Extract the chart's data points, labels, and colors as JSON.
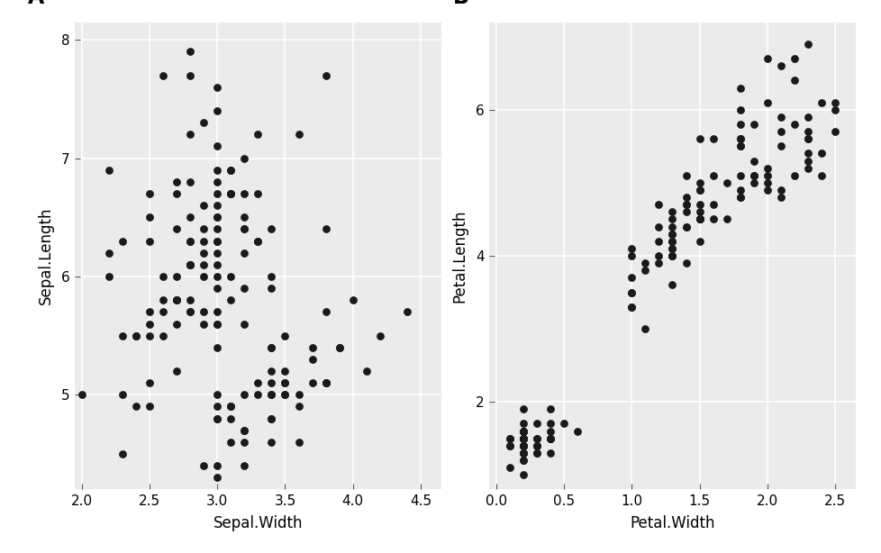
{
  "sepal_width": [
    3.5,
    3.0,
    3.2,
    3.1,
    3.6,
    3.9,
    3.4,
    3.4,
    2.9,
    3.1,
    3.7,
    3.4,
    3.0,
    3.0,
    4.0,
    4.4,
    3.9,
    3.5,
    3.8,
    3.8,
    3.4,
    3.7,
    3.6,
    3.3,
    3.4,
    3.0,
    3.4,
    3.5,
    3.4,
    3.2,
    3.1,
    3.4,
    4.1,
    4.2,
    3.1,
    3.2,
    3.5,
    3.6,
    3.0,
    3.4,
    3.5,
    2.3,
    3.2,
    3.5,
    3.8,
    3.0,
    3.8,
    3.2,
    3.7,
    3.3,
    3.2,
    3.2,
    3.1,
    2.3,
    2.8,
    2.8,
    3.3,
    2.4,
    2.9,
    2.7,
    2.0,
    3.0,
    2.2,
    2.9,
    2.9,
    3.1,
    3.0,
    2.7,
    2.2,
    2.5,
    3.2,
    2.8,
    2.5,
    2.8,
    2.9,
    3.0,
    2.8,
    3.0,
    2.9,
    2.6,
    2.4,
    2.4,
    2.7,
    2.7,
    3.0,
    3.4,
    3.1,
    2.3,
    3.0,
    2.5,
    2.6,
    3.0,
    2.6,
    2.3,
    2.7,
    3.0,
    2.9,
    2.9,
    2.5,
    2.8,
    3.3,
    2.7,
    3.0,
    2.9,
    3.0,
    3.0,
    2.5,
    2.9,
    2.5,
    3.6,
    3.2,
    2.7,
    3.0,
    2.5,
    2.8,
    3.2,
    3.0,
    3.8,
    2.6,
    2.2,
    3.2,
    2.8,
    2.8,
    2.7,
    3.3,
    3.2,
    2.8,
    3.0,
    2.8,
    3.0,
    2.8,
    3.8,
    2.8,
    2.8,
    2.6,
    3.0,
    3.4,
    3.1,
    3.0,
    3.1,
    3.1,
    3.1,
    2.7,
    3.2,
    3.3,
    3.0,
    2.5,
    3.0,
    3.4,
    3.0
  ],
  "sepal_length": [
    5.1,
    4.9,
    4.7,
    4.6,
    5.0,
    5.4,
    4.6,
    5.0,
    4.4,
    4.9,
    5.4,
    4.8,
    4.8,
    4.3,
    5.8,
    5.7,
    5.4,
    5.1,
    5.7,
    5.1,
    5.4,
    5.1,
    4.6,
    5.1,
    4.8,
    5.0,
    5.0,
    5.2,
    5.2,
    4.7,
    4.8,
    5.4,
    5.2,
    5.5,
    4.9,
    5.0,
    5.5,
    4.9,
    4.4,
    5.1,
    5.0,
    4.5,
    4.4,
    5.0,
    5.1,
    4.8,
    5.1,
    4.6,
    5.3,
    5.0,
    7.0,
    6.4,
    6.9,
    5.5,
    6.5,
    5.7,
    6.3,
    4.9,
    6.6,
    5.2,
    5.0,
    5.9,
    6.0,
    6.1,
    5.6,
    6.7,
    5.6,
    5.8,
    6.2,
    5.6,
    5.9,
    6.1,
    6.3,
    6.1,
    6.4,
    6.6,
    6.8,
    6.7,
    6.0,
    5.7,
    5.5,
    5.5,
    5.8,
    6.0,
    5.4,
    6.0,
    6.7,
    6.3,
    5.6,
    5.5,
    5.5,
    6.1,
    5.8,
    5.0,
    5.6,
    5.7,
    5.7,
    6.2,
    5.1,
    5.7,
    6.3,
    5.8,
    7.1,
    6.3,
    6.5,
    7.6,
    4.9,
    7.3,
    6.7,
    7.2,
    6.5,
    6.4,
    6.8,
    5.7,
    5.8,
    6.4,
    6.5,
    7.7,
    6.0,
    6.9,
    5.6,
    7.7,
    6.3,
    6.7,
    7.2,
    6.2,
    6.1,
    6.4,
    7.2,
    7.4,
    7.9,
    6.4,
    6.3,
    6.1,
    7.7,
    6.3,
    6.4,
    6.0,
    6.9,
    6.7,
    6.9,
    5.8,
    6.8,
    6.7,
    6.7,
    6.3,
    6.5,
    6.2,
    5.9,
    6.0
  ],
  "petal_width": [
    0.2,
    0.2,
    0.2,
    0.2,
    0.2,
    0.4,
    0.3,
    0.2,
    0.2,
    0.1,
    0.2,
    0.2,
    0.1,
    0.1,
    0.2,
    0.4,
    0.4,
    0.3,
    0.3,
    0.3,
    0.2,
    0.4,
    0.2,
    0.5,
    0.2,
    0.2,
    0.4,
    0.2,
    0.2,
    0.2,
    0.2,
    0.4,
    0.1,
    0.2,
    0.2,
    0.2,
    0.2,
    0.1,
    0.2,
    0.3,
    0.3,
    0.3,
    0.2,
    0.6,
    0.4,
    0.3,
    0.2,
    0.2,
    0.2,
    0.2,
    1.4,
    1.5,
    1.5,
    1.3,
    1.5,
    1.3,
    1.6,
    1.0,
    1.3,
    1.4,
    1.0,
    1.5,
    1.0,
    1.4,
    1.3,
    1.4,
    1.5,
    1.0,
    1.5,
    1.1,
    1.8,
    1.3,
    1.5,
    1.2,
    1.3,
    1.4,
    1.4,
    1.7,
    1.5,
    1.0,
    1.1,
    1.0,
    1.2,
    1.6,
    1.5,
    1.6,
    1.5,
    1.3,
    1.3,
    1.3,
    1.2,
    1.4,
    1.2,
    1.0,
    1.3,
    1.2,
    1.3,
    1.3,
    1.1,
    1.3,
    2.5,
    1.9,
    2.1,
    1.8,
    2.2,
    2.1,
    1.7,
    1.8,
    1.8,
    2.5,
    2.0,
    1.9,
    2.1,
    2.0,
    2.4,
    2.3,
    1.8,
    2.2,
    2.3,
    1.5,
    2.3,
    2.0,
    2.0,
    1.8,
    2.1,
    1.8,
    1.8,
    2.1,
    1.6,
    1.9,
    2.0,
    2.2,
    1.5,
    1.4,
    2.3,
    2.4,
    1.8,
    1.8,
    2.1,
    2.4,
    2.3,
    1.9,
    2.3,
    2.5,
    2.3,
    1.9,
    2.0,
    2.3,
    1.8,
    2.2
  ],
  "petal_length": [
    1.4,
    1.4,
    1.3,
    1.5,
    1.4,
    1.7,
    1.4,
    1.5,
    1.4,
    1.5,
    1.5,
    1.6,
    1.4,
    1.1,
    1.2,
    1.5,
    1.3,
    1.4,
    1.7,
    1.5,
    1.7,
    1.5,
    1.0,
    1.7,
    1.9,
    1.6,
    1.6,
    1.5,
    1.4,
    1.6,
    1.6,
    1.5,
    1.5,
    1.4,
    1.5,
    1.2,
    1.3,
    1.4,
    1.3,
    1.5,
    1.3,
    1.3,
    1.3,
    1.6,
    1.9,
    1.4,
    1.6,
    1.4,
    1.5,
    1.4,
    4.7,
    4.5,
    4.9,
    4.0,
    4.6,
    4.5,
    4.7,
    3.3,
    4.6,
    3.9,
    3.5,
    4.2,
    4.0,
    4.7,
    3.6,
    4.4,
    4.5,
    4.1,
    4.5,
    3.9,
    4.8,
    4.0,
    4.9,
    4.7,
    4.3,
    4.4,
    4.8,
    5.0,
    4.5,
    3.5,
    3.8,
    3.7,
    3.9,
    5.1,
    4.5,
    4.5,
    4.7,
    4.4,
    4.1,
    4.0,
    4.4,
    4.6,
    4.0,
    3.3,
    4.2,
    4.2,
    4.2,
    4.3,
    3.0,
    4.1,
    6.0,
    5.1,
    5.9,
    5.6,
    5.8,
    6.6,
    4.5,
    6.3,
    5.8,
    6.1,
    5.1,
    5.3,
    5.5,
    5.0,
    5.1,
    5.3,
    5.5,
    6.7,
    6.9,
    5.0,
    5.7,
    4.9,
    6.7,
    4.9,
    5.7,
    6.0,
    4.8,
    4.9,
    5.6,
    5.8,
    6.1,
    6.4,
    5.6,
    5.1,
    5.6,
    6.1,
    5.6,
    5.5,
    4.8,
    5.4,
    5.6,
    5.1,
    5.9,
    5.7,
    5.2,
    5.0,
    5.2,
    5.4,
    5.1,
    5.1
  ],
  "bg_color": "#EBEBEB",
  "dot_color": "#1a1a1a",
  "dot_size": 40,
  "panel_A_xlabel": "Sepal.Width",
  "panel_A_ylabel": "Sepal.Length",
  "panel_A_xlim": [
    1.95,
    4.65
  ],
  "panel_A_ylim": [
    4.2,
    8.15
  ],
  "panel_A_xticks": [
    2.0,
    2.5,
    3.0,
    3.5,
    4.0,
    4.5
  ],
  "panel_A_yticks": [
    5,
    6,
    7,
    8
  ],
  "panel_B_xlabel": "Petal.Width",
  "panel_B_ylabel": "Petal.Length",
  "panel_B_xlim": [
    -0.05,
    2.65
  ],
  "panel_B_ylim": [
    0.8,
    7.2
  ],
  "panel_B_xticks": [
    0.0,
    0.5,
    1.0,
    1.5,
    2.0,
    2.5
  ],
  "panel_B_yticks": [
    2,
    4,
    6
  ],
  "axis_label_fontsize": 12,
  "tick_fontsize": 11,
  "panel_label_fontsize": 17,
  "grid_color": "#ffffff",
  "grid_linewidth": 1.2
}
